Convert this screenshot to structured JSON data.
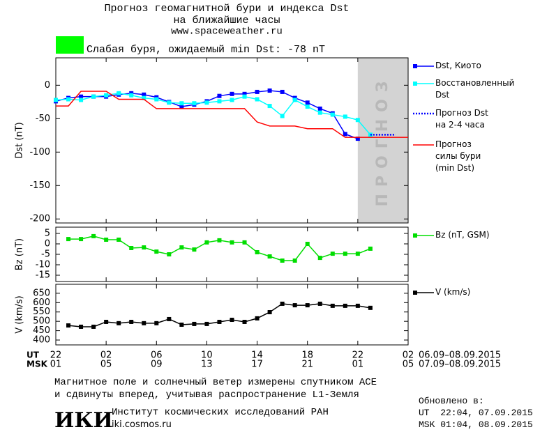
{
  "header": {
    "title": "Прогноз геомагнитной бури и индекса Dst",
    "subtitle": "на ближайшие часы",
    "url": "www.spaceweather.ru"
  },
  "status": {
    "color": "#00ff00",
    "text": "Слабая буря, ожидаемый min Dst: -78 nT"
  },
  "chart_data": [
    {
      "type": "line",
      "ylabel": "Dst (nT)",
      "xlim": [
        0,
        28
      ],
      "ylim": [
        -206,
        41
      ],
      "xticks": [
        0,
        4,
        8,
        12,
        16,
        20,
        24,
        28
      ],
      "yticks": [
        0,
        -50,
        -100,
        -150,
        -200
      ],
      "forecast_region": {
        "x": [
          24,
          28
        ],
        "label": "ПРОГНОЗ",
        "color": "#d3d3d3"
      },
      "series": [
        {
          "name": "Dst, Киото",
          "color": "#0000ff",
          "marker": "square",
          "dash": "solid",
          "x": [
            0,
            1,
            2,
            3,
            4,
            5,
            6,
            7,
            8,
            9,
            10,
            11,
            12,
            13,
            14,
            15,
            16,
            17,
            18,
            19,
            20,
            21,
            22,
            23,
            24
          ],
          "values": [
            -24,
            -19,
            -17,
            -17,
            -17,
            -14,
            -12,
            -14,
            -18,
            -25,
            -32,
            -29,
            -24,
            -16,
            -13,
            -13,
            -10,
            -8,
            -10,
            -19,
            -26,
            -35,
            -42,
            -73,
            -80
          ]
        },
        {
          "name": "Восстановленный\nDst",
          "color": "#00ffff",
          "marker": "square",
          "dash": "solid",
          "x": [
            0,
            1,
            2,
            3,
            4,
            5,
            6,
            7,
            8,
            9,
            10,
            11,
            12,
            13,
            14,
            15,
            16,
            17,
            18,
            19,
            20,
            21,
            22,
            23,
            24,
            25
          ],
          "values": [
            -22,
            -21,
            -22,
            -17,
            -15,
            -12,
            -15,
            -19,
            -21,
            -26,
            -27,
            -27,
            -26,
            -24,
            -22,
            -17,
            -21,
            -31,
            -46,
            -22,
            -32,
            -41,
            -44,
            -47,
            -52,
            -74
          ]
        },
        {
          "name": "Прогноз Dst\nна 2-4 часа",
          "color": "#0000ff",
          "marker": "none",
          "dash": "dotted",
          "x": [
            25,
            26,
            27
          ],
          "values": [
            -74,
            -74,
            -74
          ]
        },
        {
          "name": "Прогноз\nсилы бури\n(min Dst)",
          "color": "#ff0000",
          "marker": "none",
          "dash": "solid",
          "x": [
            0,
            1,
            2,
            4,
            5,
            7,
            8,
            15,
            16,
            17,
            19,
            20,
            22,
            23,
            28
          ],
          "values": [
            -31,
            -31,
            -9,
            -9,
            -21,
            -21,
            -35,
            -35,
            -55,
            -61,
            -61,
            -65,
            -65,
            -78,
            -78
          ]
        }
      ]
    },
    {
      "type": "line",
      "ylabel": "Bz (nT)",
      "xlim": [
        0,
        28
      ],
      "ylim": [
        -18,
        8
      ],
      "xticks": [
        0,
        4,
        8,
        12,
        16,
        20,
        24,
        28
      ],
      "yticks": [
        5,
        0,
        -5,
        -10,
        -15
      ],
      "series": [
        {
          "name": "Bz (nT, GSM)",
          "color": "#00dd00",
          "marker": "square",
          "dash": "solid",
          "x": [
            1,
            2,
            3,
            4,
            5,
            6,
            7,
            8,
            9,
            10,
            11,
            12,
            13,
            14,
            15,
            16,
            17,
            18,
            19,
            20,
            21,
            22,
            23,
            24,
            25
          ],
          "values": [
            2.3,
            2.3,
            3.7,
            2,
            2,
            -2,
            -1.7,
            -3.7,
            -5,
            -1.7,
            -2.7,
            0.7,
            1.7,
            0.7,
            0.7,
            -4,
            -6,
            -8,
            -8,
            0,
            -6.7,
            -4.7,
            -4.7,
            -4.7,
            -2.3
          ]
        }
      ]
    },
    {
      "type": "line",
      "ylabel": "V (km/s)",
      "xlim": [
        0,
        28
      ],
      "ylim": [
        374,
        698
      ],
      "xlabel": "UT",
      "xlabel_msk": "MSK",
      "xticks": [
        {
          "value": 0,
          "label": "22"
        },
        {
          "value": 4,
          "label": "02"
        },
        {
          "value": 8,
          "label": "06"
        },
        {
          "value": 12,
          "label": "10"
        },
        {
          "value": 16,
          "label": "14"
        },
        {
          "value": 20,
          "label": "18"
        },
        {
          "value": 24,
          "label": "22"
        },
        {
          "value": 28,
          "label": "02"
        }
      ],
      "xticks_msk": [
        {
          "value": 0,
          "label": "01"
        },
        {
          "value": 4,
          "label": "05"
        },
        {
          "value": 8,
          "label": "09"
        },
        {
          "value": 12,
          "label": "13"
        },
        {
          "value": 16,
          "label": "17"
        },
        {
          "value": 20,
          "label": "21"
        },
        {
          "value": 24,
          "label": "01"
        },
        {
          "value": 28,
          "label": "05"
        }
      ],
      "date_range_ut": "06.09–08.09.2015",
      "date_range_msk": "07.09–08.09.2015",
      "yticks": [
        650,
        600,
        550,
        500,
        450,
        400
      ],
      "series": [
        {
          "name": "V (km/s)",
          "color": "#000000",
          "marker": "square",
          "dash": "solid",
          "x": [
            1,
            2,
            3,
            4,
            5,
            6,
            7,
            8,
            9,
            10,
            11,
            12,
            13,
            14,
            15,
            16,
            17,
            18,
            19,
            20,
            21,
            22,
            23,
            24,
            25
          ],
          "values": [
            478,
            471,
            471,
            497,
            490,
            497,
            490,
            490,
            512,
            482,
            486,
            486,
            497,
            508,
            497,
            516,
            549,
            594,
            586,
            586,
            594,
            583,
            583,
            583,
            572
          ]
        }
      ]
    }
  ],
  "note": "Магнитное поле и солнечный ветер измерены спутником ACE\nи сдвинуты вперед, учитывая распространение L1-Земля",
  "institute": {
    "logo": "ИКИ",
    "name": "Институт космических исследований РАН",
    "url": "iki.cosmos.ru"
  },
  "updated": {
    "label": "Обновлено в:",
    "ut": "UT  22:04, 07.09.2015",
    "msk": "MSK 01:04, 08.09.2015"
  }
}
